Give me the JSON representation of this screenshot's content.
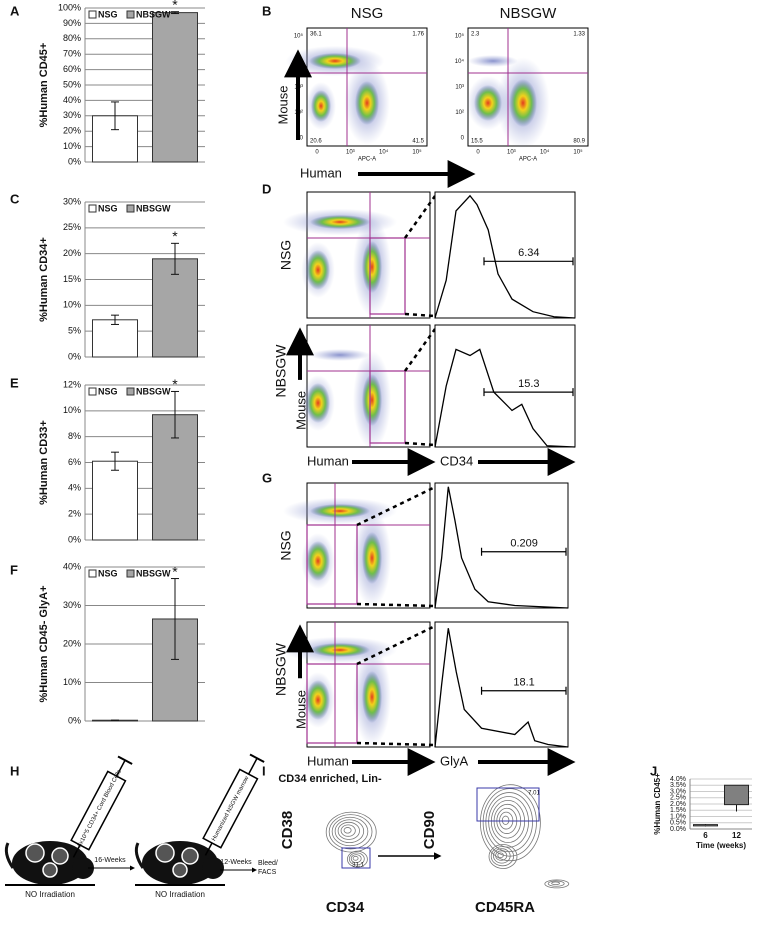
{
  "panel_letters": [
    "A",
    "B",
    "C",
    "D",
    "E",
    "F",
    "G",
    "H",
    "I",
    "J"
  ],
  "chart_data": [
    {
      "type": "bar",
      "ylabel": "%Human CD45+",
      "grid": true,
      "annotations": [
        "*"
      ],
      "series": [
        {
          "name": "NSG",
          "color": "#ffffff",
          "values": [
            30
          ],
          "errors": [
            9
          ]
        },
        {
          "name": "NBSGW",
          "color": "#a6a6a6",
          "values": [
            97
          ],
          "errors": [
            0.6
          ]
        }
      ],
      "ylim": [
        0,
        100
      ],
      "yticks": [
        {
          "value": 0,
          "label": "0%"
        },
        {
          "value": 10,
          "label": "10%"
        },
        {
          "value": 20,
          "label": "20%"
        },
        {
          "value": 30,
          "label": "30%"
        },
        {
          "value": 40,
          "label": "40%"
        },
        {
          "value": 50,
          "label": "50%"
        },
        {
          "value": 60,
          "label": "60%"
        },
        {
          "value": 70,
          "label": "70%"
        },
        {
          "value": 80,
          "label": "80%"
        },
        {
          "value": 90,
          "label": "90%"
        },
        {
          "value": 100,
          "label": "100%"
        }
      ]
    },
    {
      "type": "bar",
      "ylabel": "%Human CD34+",
      "grid": true,
      "annotations": [
        "*"
      ],
      "series": [
        {
          "name": "NSG",
          "color": "#ffffff",
          "values": [
            7.2
          ],
          "errors": [
            0.9
          ]
        },
        {
          "name": "NBSGW",
          "color": "#a6a6a6",
          "values": [
            19
          ],
          "errors": [
            3
          ]
        }
      ],
      "ylim": [
        0,
        30
      ],
      "yticks": [
        {
          "value": 0,
          "label": "0%"
        },
        {
          "value": 5,
          "label": "5%"
        },
        {
          "value": 10,
          "label": "10%"
        },
        {
          "value": 15,
          "label": "15%"
        },
        {
          "value": 20,
          "label": "20%"
        },
        {
          "value": 25,
          "label": "25%"
        },
        {
          "value": 30,
          "label": "30%"
        }
      ]
    },
    {
      "type": "bar",
      "ylabel": "%Human CD33+",
      "grid": true,
      "annotations": [
        "*"
      ],
      "series": [
        {
          "name": "NSG",
          "color": "#ffffff",
          "values": [
            6.1
          ],
          "errors": [
            0.7
          ]
        },
        {
          "name": "NBSGW",
          "color": "#a6a6a6",
          "values": [
            9.7
          ],
          "errors": [
            1.8
          ]
        }
      ],
      "ylim": [
        0,
        12
      ],
      "yticks": [
        {
          "value": 0,
          "label": "0%"
        },
        {
          "value": 2,
          "label": "2%"
        },
        {
          "value": 4,
          "label": "4%"
        },
        {
          "value": 6,
          "label": "6%"
        },
        {
          "value": 8,
          "label": "8%"
        },
        {
          "value": 10,
          "label": "10%"
        },
        {
          "value": 12,
          "label": "12%"
        }
      ]
    },
    {
      "type": "bar",
      "ylabel": "%Human CD45- GlyA+",
      "grid": true,
      "annotations": [
        "*"
      ],
      "series": [
        {
          "name": "NSG",
          "color": "#ffffff",
          "values": [
            0.2
          ],
          "errors": [
            0
          ]
        },
        {
          "name": "NBSGW",
          "color": "#a6a6a6",
          "values": [
            26.5
          ],
          "errors": [
            10.5
          ]
        }
      ],
      "ylim": [
        0,
        40
      ],
      "yticks": [
        {
          "value": 0,
          "label": "0%"
        },
        {
          "value": 10,
          "label": "10%"
        },
        {
          "value": 20,
          "label": "20%"
        },
        {
          "value": 30,
          "label": "30%"
        },
        {
          "value": 40,
          "label": "40%"
        }
      ]
    },
    {
      "type": "box",
      "ylabel": "%Human CD45+",
      "xlabel": "Time (weeks)",
      "grid": true,
      "categories": [
        "6",
        "12"
      ],
      "series": [
        {
          "colors": [
            "#c8c8c8",
            "#808080"
          ],
          "min": [
            0.2,
            1.4
          ],
          "q1": [
            0.25,
            1.95
          ],
          "q3": [
            0.35,
            3.5
          ],
          "max": [
            0.4,
            3.5
          ]
        }
      ],
      "ylim": [
        0,
        4
      ],
      "yticks": [
        {
          "value": 0,
          "label": "0.0%"
        },
        {
          "value": 0.5,
          "label": "0.5%"
        },
        {
          "value": 1,
          "label": "1.0%"
        },
        {
          "value": 1.5,
          "label": "1.5%"
        },
        {
          "value": 2,
          "label": "2.0%"
        },
        {
          "value": 2.5,
          "label": "2.5%"
        },
        {
          "value": 3,
          "label": "3.0%"
        },
        {
          "value": 3.5,
          "label": "3.5%"
        },
        {
          "value": 4,
          "label": "4.0%"
        }
      ]
    }
  ],
  "flow": {
    "B": {
      "titles": [
        "NSG",
        "NBSGW"
      ],
      "quadrants": [
        [
          "36.1",
          "1.76",
          "20.6",
          "41.5"
        ],
        [
          "2.3",
          "1.33",
          "15.5",
          "80.9"
        ]
      ],
      "y_ticks": [
        "10⁵",
        "10⁴",
        "10³",
        "10²",
        "0"
      ],
      "x_ticks": [
        "0",
        "10³",
        "10⁴",
        "10⁵"
      ],
      "x_param": "APC-A",
      "y_axis": "Mouse",
      "x_axis": "Human"
    },
    "D": {
      "rows": [
        "NSG",
        "NBSGW"
      ],
      "gates": [
        "6.34",
        "15.3"
      ],
      "y_axis": "Mouse",
      "x_axis": "Human",
      "hist_axis": "CD34"
    },
    "G": {
      "rows": [
        "NSG",
        "NBSGW"
      ],
      "gates": [
        "0.209",
        "18.1"
      ],
      "y_axis": "Mouse",
      "x_axis": "Human",
      "hist_axis": "GlyA"
    }
  },
  "diagram": {
    "syringes": [
      "2.5x10^5 CD34+ Cord Blood Cells",
      "Humanized NSGW marrow"
    ],
    "steps": [
      "16-Weeks",
      "12-Weeks"
    ],
    "mice": [
      "NO Irradiation",
      "NO Irradiation"
    ],
    "end": [
      "Bleed/",
      "FACS"
    ]
  },
  "contour": {
    "title": "CD34 enriched, Lin-",
    "plots": [
      {
        "y": "CD38",
        "x": "CD34",
        "gate": "31.1"
      },
      {
        "y": "CD90",
        "x": "CD45RA",
        "gate": "7.01"
      }
    ]
  }
}
